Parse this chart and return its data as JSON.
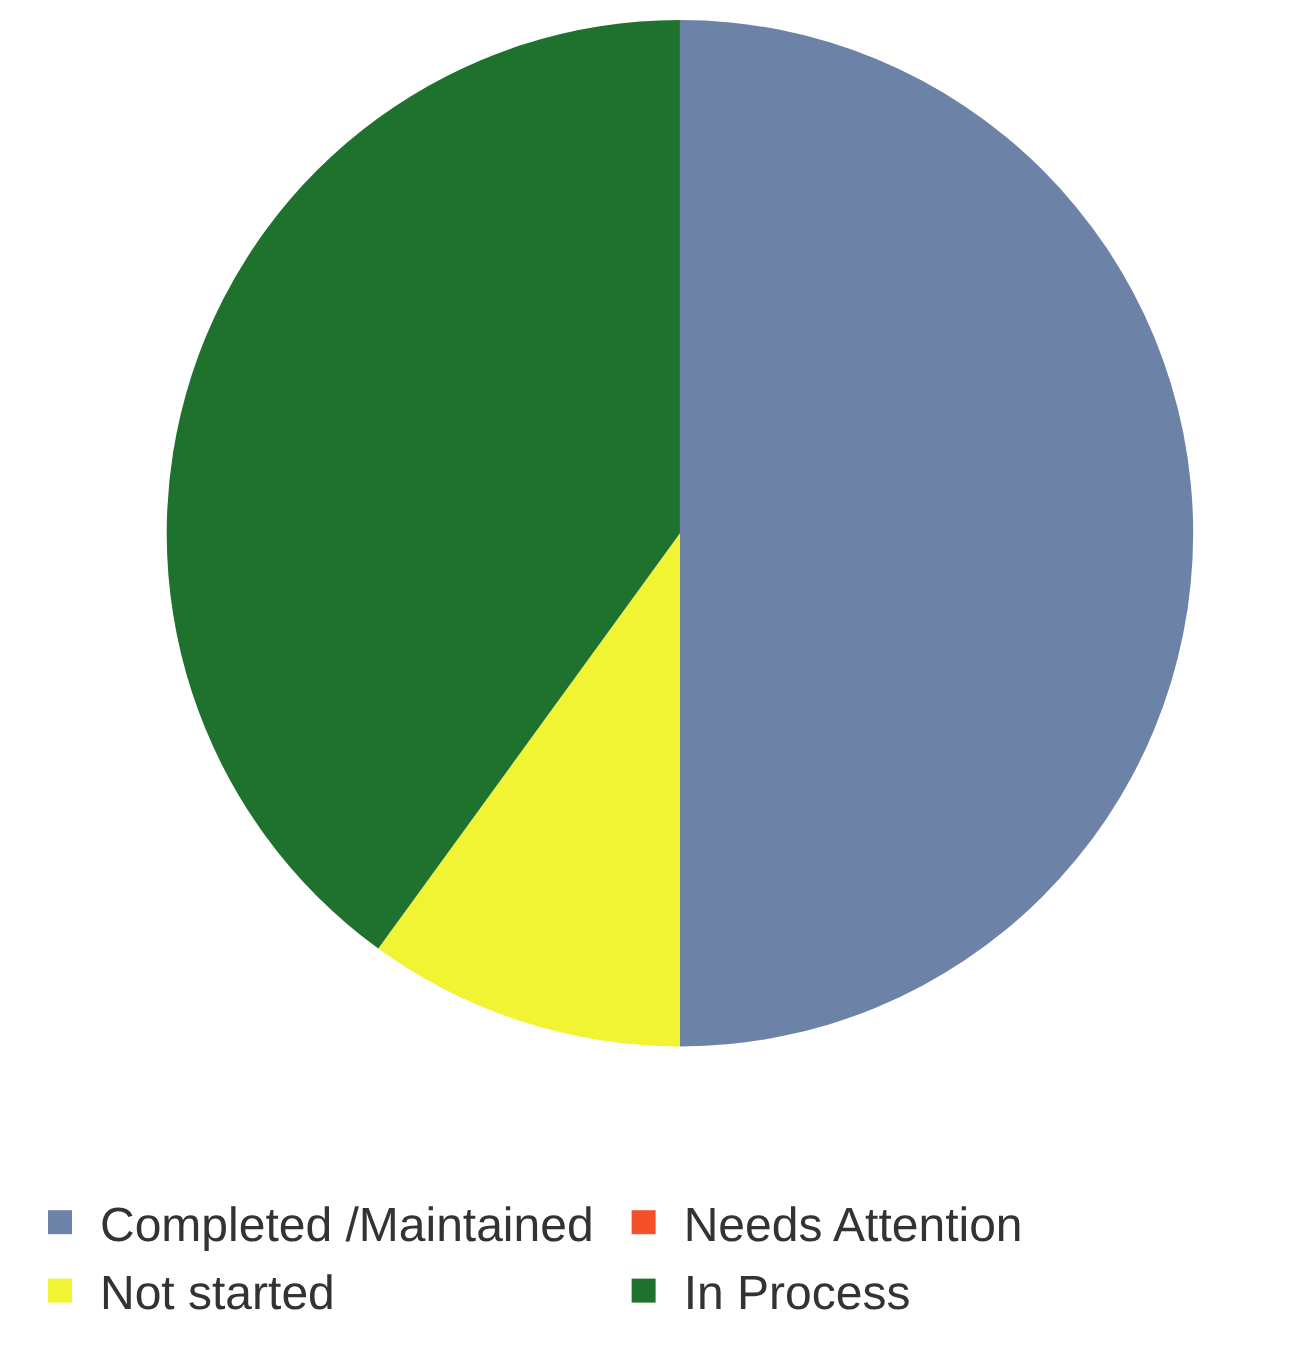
{
  "chart_data": {
    "type": "pie",
    "categories": [
      "Completed /Maintained",
      "Needs Attention",
      "Not started",
      "In Process"
    ],
    "values": [
      50,
      0,
      10,
      40
    ],
    "colors": [
      "#6d82a7",
      "#f4502a",
      "#f0f433",
      "#1f722d"
    ],
    "legend": "bottom"
  }
}
